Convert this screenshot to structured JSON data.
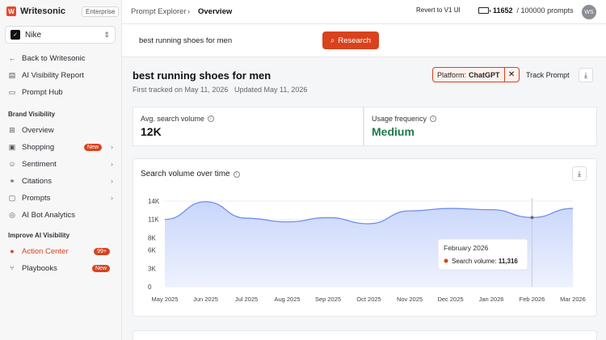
{
  "app": {
    "name": "Writesonic",
    "plan": "Enterprise"
  },
  "workspace": {
    "name": "Nike"
  },
  "sidebar": {
    "back": "Back to Writesonic",
    "top_items": [
      {
        "label": "AI Visibility Report",
        "icon": "chart-icon"
      },
      {
        "label": "Prompt Hub",
        "icon": "document-icon"
      }
    ],
    "brand_section": "Brand Visibility",
    "brand_items": [
      {
        "label": "Overview",
        "icon": "grid-icon"
      },
      {
        "label": "Shopping",
        "badge": "New",
        "icon": "cart-icon"
      },
      {
        "label": "Sentiment",
        "icon": "smile-icon"
      },
      {
        "label": "Citations",
        "icon": "link-icon"
      },
      {
        "label": "Prompts",
        "icon": "chat-icon"
      },
      {
        "label": "AI Bot Analytics",
        "icon": "globe-icon"
      }
    ],
    "improve_section": "Improve AI Visibility",
    "improve_items": [
      {
        "label": "Action Center",
        "badge": "99+",
        "icon": "bulb-icon"
      },
      {
        "label": "Playbooks",
        "badge": "New",
        "icon": "flow-icon"
      }
    ]
  },
  "topbar": {
    "breadcrumb": [
      "Prompt Explorer",
      "Overview"
    ],
    "revert": "Revert to V1 UI",
    "prompts_used": "11652",
    "prompts_total": "/ 100000 prompts",
    "avatar": "WS"
  },
  "search": {
    "value": "best running shoes for men",
    "button": "Research"
  },
  "prompt": {
    "title": "best running shoes for men",
    "first_tracked": "First tracked on May 11, 2026",
    "updated": "Updated May 11, 2026",
    "platform_label": "Platform:",
    "platform_value": "ChatGPT",
    "track": "Track Prompt"
  },
  "metrics": {
    "volume_label": "Avg. search volume",
    "volume_value": "12K",
    "frequency_label": "Usage frequency",
    "frequency_value": "Medium",
    "frequency_color": "#1e7a4a"
  },
  "accent": "#d9421c",
  "chart_data": {
    "type": "area",
    "title": "Search volume over time",
    "categories": [
      "May 2025",
      "Jun 2025",
      "Jul 2025",
      "Aug 2025",
      "Sep 2025",
      "Oct 2025",
      "Nov 2025",
      "Dec 2025",
      "Jan 2026",
      "Feb 2026",
      "Mar 2026"
    ],
    "values": [
      11000,
      13900,
      11200,
      10600,
      11300,
      10300,
      12400,
      12800,
      12600,
      11316,
      12800
    ],
    "yticks": [
      "0",
      "3K",
      "6K",
      "8K",
      "11K",
      "14K"
    ],
    "ylim": [
      0,
      14000
    ],
    "grid": true,
    "color": "#6f8ff0",
    "tooltip": {
      "category": "February 2026",
      "label": "Search volume:",
      "value": "11,316"
    }
  }
}
